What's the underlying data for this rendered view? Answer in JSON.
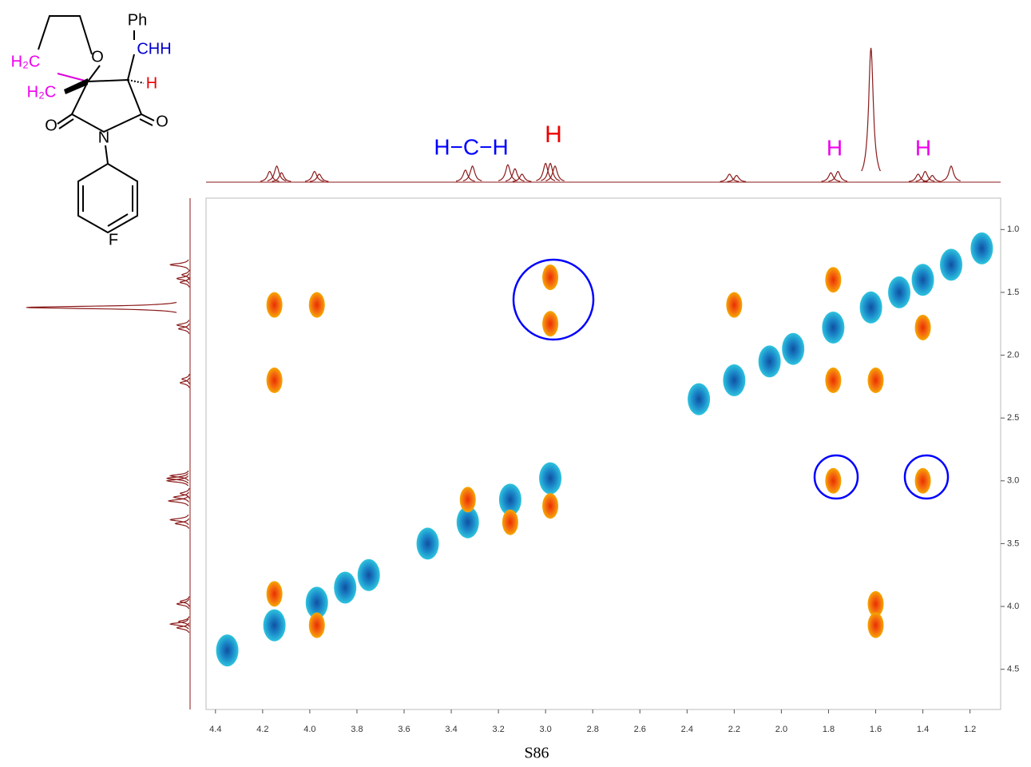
{
  "chart_data": {
    "type": "cosy",
    "xlim": [
      4.44,
      1.07
    ],
    "ylim": [
      0.75,
      4.82
    ],
    "xticks": [
      4.4,
      4.2,
      {
        "value": 4,
        "label": "4.0"
      },
      3.8,
      3.6,
      3.4,
      3.2,
      {
        "value": 3,
        "label": "3.0"
      },
      2.8,
      2.6,
      2.4,
      2.2,
      {
        "value": 2,
        "label": "2.0"
      },
      1.8,
      1.6,
      1.4,
      1.2
    ],
    "yticks": [
      {
        "value": 1,
        "label": "1.0"
      },
      1.5,
      {
        "value": 2,
        "label": "2.0"
      },
      2.5,
      {
        "value": 3,
        "label": "3.0"
      },
      3.5,
      {
        "value": 4,
        "label": "4.0"
      },
      4.5
    ],
    "series": [
      {
        "name": "diagonal",
        "color": "#2ec4de",
        "x": [
          4.35,
          4.15,
          3.97,
          3.85,
          3.75,
          3.5,
          3.33,
          3.15,
          2.98,
          2.35,
          2.2,
          2.05,
          1.95,
          1.78,
          1.62,
          1.5,
          1.4,
          1.28,
          1.15
        ],
        "values": [
          4.35,
          4.15,
          3.97,
          3.85,
          3.75,
          3.5,
          3.33,
          3.15,
          2.98,
          2.35,
          2.2,
          2.05,
          1.95,
          1.78,
          1.62,
          1.5,
          1.4,
          1.28,
          1.15
        ]
      },
      {
        "name": "cross",
        "color": "#f5a800",
        "x": [
          4.15,
          3.97,
          4.15,
          2.98,
          2.98,
          2.2,
          1.78,
          1.4,
          1.6,
          1.78,
          1.78,
          1.4,
          4.15,
          3.97,
          3.33,
          3.15,
          2.98,
          1.6,
          1.6
        ],
        "values": [
          1.6,
          1.6,
          2.2,
          1.38,
          1.75,
          1.6,
          1.4,
          1.78,
          2.2,
          2.2,
          3.0,
          3.0,
          3.9,
          4.15,
          3.15,
          3.33,
          3.2,
          3.98,
          4.15
        ]
      }
    ],
    "projection": {
      "x": [
        4.17,
        4.14,
        4.12,
        3.98,
        3.96,
        3.34,
        3.31,
        3.16,
        3.13,
        3.1,
        3.0,
        2.98,
        2.96,
        2.22,
        2.19,
        1.79,
        1.76,
        1.62,
        1.42,
        1.39,
        1.36,
        1.28
      ],
      "values": [
        8,
        12,
        7,
        8,
        6,
        9,
        12,
        13,
        10,
        6,
        14,
        14,
        12,
        6,
        5,
        7,
        8,
        100,
        6,
        8,
        5,
        12
      ],
      "ylim": [
        0,
        100
      ],
      "color": "#8b1a1a"
    },
    "annotations": [
      "H−C−H",
      "H",
      "H",
      "H"
    ],
    "molecule": {
      "ph": "Ph",
      "chh": "CHH",
      "h2c_top": "H₂C",
      "h2c_bottom": "H₂C",
      "h": "H",
      "o_ring": "O",
      "o_left": "O",
      "o_right": "O",
      "n": "N",
      "f": "F"
    },
    "page_label": "S86"
  }
}
